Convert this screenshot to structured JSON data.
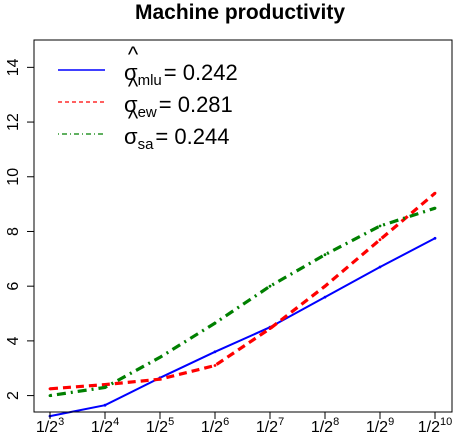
{
  "chart_data": {
    "type": "line",
    "title": "Machine productivity",
    "xlabel": "",
    "ylabel": "",
    "x": [
      3,
      4,
      5,
      6,
      7,
      8,
      9,
      10
    ],
    "x_tick_base": "1/2",
    "x_tick_exponents": [
      "3",
      "4",
      "5",
      "6",
      "7",
      "8",
      "9",
      "10"
    ],
    "xlim": [
      3,
      10
    ],
    "ylim": [
      1.4,
      15
    ],
    "y_ticks": [
      2,
      4,
      6,
      8,
      10,
      12,
      14
    ],
    "grid": false,
    "legend_position": "top-left",
    "series": [
      {
        "symbol": "σ",
        "subscript": "mlu",
        "value_text": "= 0.242",
        "color": "#0000ff",
        "style": "solid",
        "values": [
          1.25,
          1.65,
          2.65,
          3.6,
          4.5,
          5.6,
          6.7,
          7.75
        ]
      },
      {
        "symbol": "σ",
        "subscript": "ew",
        "value_text": "= 0.281",
        "color": "#ff0000",
        "style": "dashed",
        "values": [
          2.25,
          2.4,
          2.6,
          3.1,
          4.45,
          6.0,
          7.7,
          9.4
        ]
      },
      {
        "symbol": "σ",
        "subscript": "sa",
        "value_text": "= 0.244",
        "color": "#008000",
        "style": "dotdash",
        "values": [
          2.0,
          2.3,
          3.4,
          4.65,
          6.0,
          7.15,
          8.2,
          8.85
        ]
      }
    ]
  }
}
